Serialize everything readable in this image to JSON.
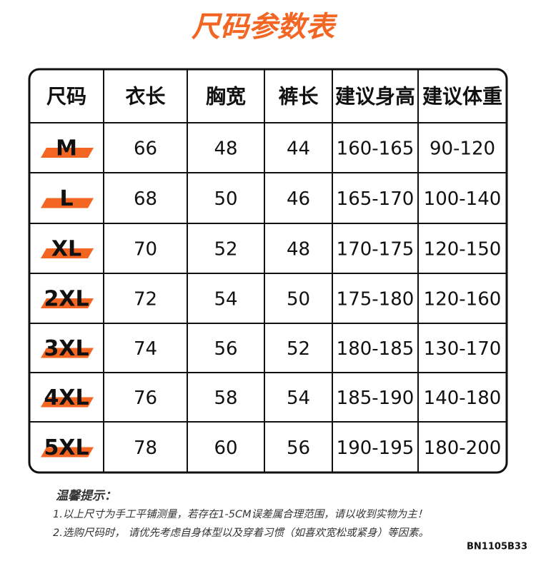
{
  "header": {
    "title": "尺码参数表"
  },
  "table": {
    "columns": [
      "尺码",
      "衣长",
      "胸宽",
      "裤长",
      "建议身高",
      "建议体重"
    ],
    "rows": [
      [
        "M",
        66,
        48,
        44,
        "160-165",
        "90-120"
      ],
      [
        "L",
        68,
        50,
        46,
        "165-170",
        "100-140"
      ],
      [
        "XL",
        70,
        52,
        48,
        "170-175",
        "120-150"
      ],
      [
        "2XL",
        72,
        54,
        50,
        "175-180",
        "120-160"
      ],
      [
        "3XL",
        74,
        56,
        52,
        "180-185",
        "130-170"
      ],
      [
        "4XL",
        76,
        58,
        54,
        "185-190",
        "140-180"
      ],
      [
        "5XL",
        78,
        60,
        56,
        "190-195",
        "180-200"
      ]
    ]
  },
  "notes": {
    "heading": "温馨提示：",
    "lines": [
      "1.以上尺寸为手工平铺测量，若存在1-5CM误差属合理范围，请以收到实物为主！",
      "2.选购尺码时， 请优先考虑自身体型以及穿着习惯（如喜欢宽松或紧身）等因素。"
    ]
  },
  "code": "BN1105B33"
}
